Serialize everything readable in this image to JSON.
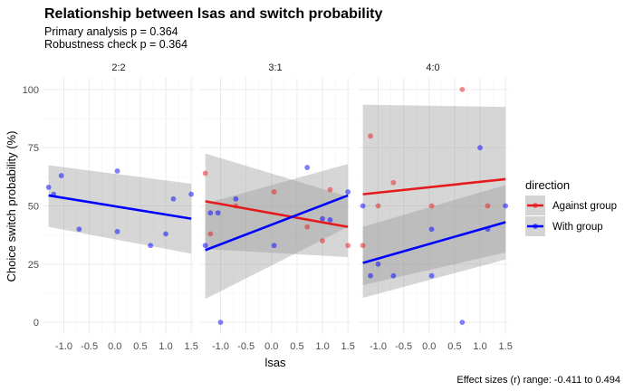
{
  "chart_data": {
    "type": "scatter",
    "title": "Relationship between lsas and switch probability",
    "subtitle_lines": [
      "Primary analysis p = 0.364",
      "Robustness check p = 0.364"
    ],
    "xlabel": "lsas",
    "ylabel": "Choice switch probability (%)",
    "caption": "Effect sizes (r) range: -0.411 to 0.494",
    "xlim": [
      -1.4,
      1.55
    ],
    "ylim": [
      -5,
      105
    ],
    "xticks": [
      -1.0,
      -0.5,
      0.0,
      0.5,
      1.0,
      1.5
    ],
    "xtick_labels": [
      "-1.0",
      "-0.5",
      "0.0",
      "0.5",
      "1.0",
      "1.5"
    ],
    "yticks": [
      0,
      25,
      50,
      75,
      100
    ],
    "ytick_labels": [
      "0",
      "25",
      "50",
      "75",
      "100"
    ],
    "grid": true,
    "legend": {
      "title": "direction",
      "position": "right",
      "entries": [
        {
          "name": "Against group",
          "color": "#e41a1c"
        },
        {
          "name": "With group",
          "color": "#0000ff"
        }
      ]
    },
    "panels": [
      {
        "label": "2:2",
        "series": [
          {
            "name": "With group",
            "color": "#0000ff",
            "points": [
              [
                -1.3,
                58
              ],
              [
                -1.2,
                55
              ],
              [
                -1.05,
                63
              ],
              [
                -0.7,
                40
              ],
              [
                0.05,
                65
              ],
              [
                0.05,
                39
              ],
              [
                0.7,
                33
              ],
              [
                1.0,
                38
              ],
              [
                1.15,
                53
              ],
              [
                1.5,
                55
              ]
            ],
            "fit": {
              "x": [
                -1.3,
                1.5
              ],
              "y": [
                54.5,
                44.5
              ],
              "ci_low": [
                41,
                29.5
              ],
              "ci_high": [
                67.5,
                59.5
              ]
            }
          }
        ]
      },
      {
        "label": "3:1",
        "series": [
          {
            "name": "Against group",
            "color": "#e41a1c",
            "points": [
              [
                -1.3,
                64
              ],
              [
                -1.2,
                38
              ],
              [
                -0.7,
                50
              ],
              [
                0.05,
                56
              ],
              [
                0.7,
                41
              ],
              [
                1.0,
                35
              ],
              [
                1.15,
                57
              ],
              [
                1.5,
                33
              ]
            ],
            "fit": {
              "x": [
                -1.3,
                1.5
              ],
              "y": [
                52,
                41
              ],
              "ci_low": [
                31.5,
                28
              ],
              "ci_high": [
                72.5,
                54
              ]
            }
          },
          {
            "name": "With group",
            "color": "#0000ff",
            "points": [
              [
                -1.3,
                33
              ],
              [
                -1.2,
                47
              ],
              [
                -1.05,
                47
              ],
              [
                -0.7,
                53
              ],
              [
                -1.0,
                0
              ],
              [
                0.05,
                33
              ],
              [
                0.7,
                66.5
              ],
              [
                1.0,
                44.5
              ],
              [
                1.15,
                44
              ],
              [
                1.5,
                56
              ]
            ],
            "fit": {
              "x": [
                -1.3,
                1.5
              ],
              "y": [
                31,
                54.5
              ],
              "ci_low": [
                10,
                41
              ],
              "ci_high": [
                51,
                68
              ]
            }
          }
        ]
      },
      {
        "label": "4:0",
        "series": [
          {
            "name": "Against group",
            "color": "#e41a1c",
            "points": [
              [
                -1.3,
                33
              ],
              [
                -1.15,
                80
              ],
              [
                -1.0,
                50
              ],
              [
                -0.7,
                60
              ],
              [
                0.05,
                50
              ],
              [
                0.65,
                100
              ],
              [
                1.15,
                50
              ]
            ],
            "fit": {
              "x": [
                -1.3,
                1.5
              ],
              "y": [
                55,
                61.5
              ],
              "ci_low": [
                16,
                30
              ],
              "ci_high": [
                93.5,
                92.5
              ]
            }
          },
          {
            "name": "With group",
            "color": "#0000ff",
            "points": [
              [
                -1.3,
                50
              ],
              [
                -1.15,
                20
              ],
              [
                -1.0,
                25
              ],
              [
                -0.7,
                20
              ],
              [
                0.05,
                40
              ],
              [
                0.05,
                20
              ],
              [
                0.65,
                0
              ],
              [
                1.0,
                75
              ],
              [
                1.15,
                40
              ],
              [
                1.5,
                50
              ]
            ],
            "fit": {
              "x": [
                -1.3,
                1.5
              ],
              "y": [
                25.5,
                43
              ],
              "ci_low": [
                10.5,
                27
              ],
              "ci_high": [
                41,
                59
              ]
            }
          }
        ]
      }
    ]
  }
}
